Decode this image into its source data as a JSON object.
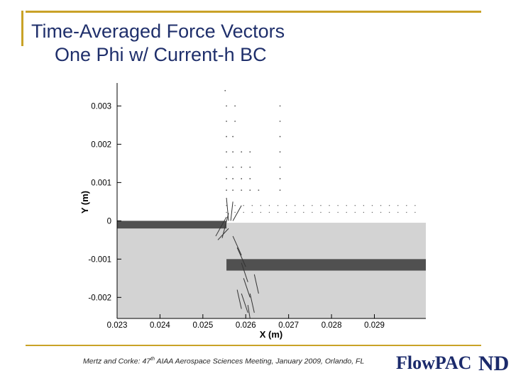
{
  "title_line1": "Time-Averaged Force Vectors",
  "title_line2": "One Phi w/ Current-h BC",
  "citation_prefix": "Mertz and Corke: 47",
  "citation_sup": "th",
  "citation_suffix": " AIAA Aerospace Sciences Meeting, January 2009, Orlando, FL",
  "logo_text": "FlowPAC",
  "logo_mark": "ND",
  "colors": {
    "accent": "#c9a227",
    "title": "#1f2f6b",
    "logo_blue": "#1b2a6b"
  },
  "chart_data": {
    "type": "vector field",
    "xlabel": "X (m)",
    "ylabel": "Y (m)",
    "x_ticks": [
      "0.023",
      "0.024",
      "0.025",
      "0.026",
      "0.027",
      "0.028",
      "0.029"
    ],
    "x_tick_values": [
      0.023,
      0.024,
      0.025,
      0.026,
      0.027,
      0.028,
      0.029
    ],
    "y_ticks": [
      "0.003",
      "0.002",
      "0.001",
      "0",
      "-0.001",
      "-0.002"
    ],
    "y_tick_values": [
      0.003,
      0.002,
      0.001,
      0,
      -0.001,
      -0.002
    ],
    "xlim": [
      0.023,
      0.0302
    ],
    "ylim": [
      -0.00255,
      0.0036
    ],
    "dielectric_region": {
      "x": [
        0.023,
        0.0302
      ],
      "y": [
        -0.00255,
        -5e-05
      ]
    },
    "exposed_electrode": {
      "x": [
        0.023,
        0.02555
      ],
      "y": [
        -0.0002,
        0.0
      ]
    },
    "covered_electrode": {
      "x": [
        0.02555,
        0.0302
      ],
      "y": [
        -0.0013,
        -0.001
      ]
    }
  }
}
